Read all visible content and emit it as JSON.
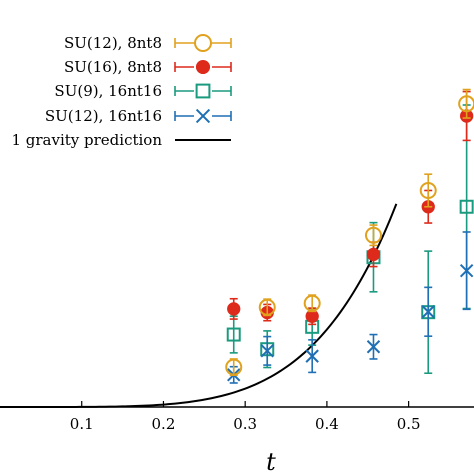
{
  "chart_data": {
    "type": "scatter",
    "title": "",
    "xlabel": "t",
    "ylabel": "",
    "xlim": [
      0.0,
      0.58
    ],
    "ylim": [
      0.0,
      1.0
    ],
    "x_ticks": [
      "0.1",
      "0.2",
      "0.3",
      "0.4",
      "0.5"
    ],
    "x_tick_values": [
      0.1,
      0.2,
      0.3,
      0.4,
      0.5
    ],
    "grid": false,
    "legend_position": "top-right",
    "series": [
      {
        "name": "SU(12), 8nt8",
        "marker": "open-circle",
        "color": "#e0a21e",
        "points": [
          {
            "x": 0.286,
            "y": 0.098,
            "err": 0.02
          },
          {
            "x": 0.327,
            "y": 0.245,
            "err": 0.02
          },
          {
            "x": 0.382,
            "y": 0.255,
            "err": 0.02
          },
          {
            "x": 0.457,
            "y": 0.422,
            "err": 0.025
          },
          {
            "x": 0.524,
            "y": 0.532,
            "err": 0.04
          },
          {
            "x": 0.571,
            "y": 0.745,
            "err": 0.035
          }
        ]
      },
      {
        "name": "SU(16), 8nt8",
        "marker": "filled-circle",
        "color": "#dd2a1b",
        "points": [
          {
            "x": 0.286,
            "y": 0.241,
            "err": 0.025
          },
          {
            "x": 0.327,
            "y": 0.232,
            "err": 0.02
          },
          {
            "x": 0.382,
            "y": 0.223,
            "err": 0.02
          },
          {
            "x": 0.457,
            "y": 0.375,
            "err": 0.03
          },
          {
            "x": 0.524,
            "y": 0.492,
            "err": 0.04
          },
          {
            "x": 0.571,
            "y": 0.715,
            "err": 0.06
          }
        ]
      },
      {
        "name": "SU(9), 16nt16",
        "marker": "open-square",
        "color": "#1a9a7e",
        "points": [
          {
            "x": 0.286,
            "y": 0.178,
            "err": 0.045
          },
          {
            "x": 0.327,
            "y": 0.142,
            "err": 0.045
          },
          {
            "x": 0.382,
            "y": 0.197,
            "err": 0.045
          },
          {
            "x": 0.457,
            "y": 0.368,
            "err": 0.085
          },
          {
            "x": 0.524,
            "y": 0.233,
            "err": 0.15
          },
          {
            "x": 0.571,
            "y": 0.492,
            "err": 0.25
          }
        ]
      },
      {
        "name": "SU(12), 16nt16",
        "marker": "x",
        "color": "#1f6fb4",
        "points": [
          {
            "x": 0.286,
            "y": 0.079,
            "err": 0.02
          },
          {
            "x": 0.327,
            "y": 0.138,
            "err": 0.035
          },
          {
            "x": 0.382,
            "y": 0.125,
            "err": 0.04
          },
          {
            "x": 0.457,
            "y": 0.148,
            "err": 0.03
          },
          {
            "x": 0.524,
            "y": 0.234,
            "err": 0.06
          },
          {
            "x": 0.571,
            "y": 0.335,
            "err": 0.095
          }
        ]
      },
      {
        "name": "1 gravity prediction",
        "marker": "line",
        "color": "#000000",
        "curve": "a * t^5",
        "a": 18.6,
        "x_range": [
          0.0,
          0.485
        ]
      }
    ]
  }
}
